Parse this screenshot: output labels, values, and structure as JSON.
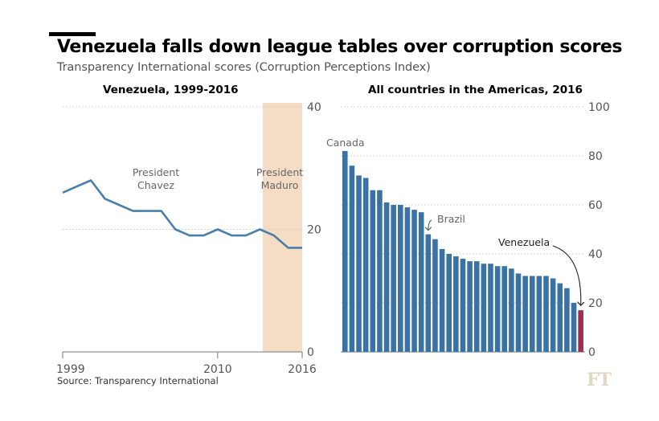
{
  "header": {
    "title": "Venezuela falls down league tables over corruption scores",
    "subtitle": "Transparency International scores (Corruption Perceptions Index)",
    "source": "Source: Transparency International",
    "logo": "FT"
  },
  "colors": {
    "line": "#4a7fa8",
    "bar": "#3b72a4",
    "highlight_bar": "#9e2f50",
    "maduro_band": "#f4ddc4",
    "grid": "#cfcac4"
  },
  "chart_data": [
    {
      "type": "line",
      "title": "Venezuela, 1999-2016",
      "x": [
        1999,
        2000,
        2001,
        2002,
        2003,
        2004,
        2005,
        2006,
        2007,
        2008,
        2009,
        2010,
        2011,
        2012,
        2013,
        2014,
        2015,
        2016
      ],
      "values": [
        26,
        27,
        28,
        25,
        24,
        23,
        23,
        23,
        20,
        19,
        19,
        20,
        19,
        19,
        20,
        19,
        17,
        17
      ],
      "xlim": [
        1999,
        2016
      ],
      "ylim": [
        0,
        40
      ],
      "x_ticks": [
        "1999",
        "2010",
        "2016"
      ],
      "y_ticks": [
        "0",
        "20",
        "40"
      ],
      "shaded_period": {
        "label": "Maduro presidency",
        "start": 2013.2,
        "end": 2016
      },
      "annotations": {
        "chavez": [
          "President",
          "Chavez"
        ],
        "maduro": [
          "President",
          "Maduro"
        ]
      }
    },
    {
      "type": "bar",
      "title": "All countries in the Americas, 2016",
      "values": [
        82,
        76,
        72,
        71,
        66,
        66,
        61,
        60,
        60,
        59,
        58,
        57,
        48,
        46,
        42,
        40,
        39,
        38,
        37,
        37,
        36,
        36,
        35,
        35,
        34,
        32,
        31,
        31,
        31,
        31,
        30,
        28,
        26,
        20,
        17
      ],
      "highlight_index": 34,
      "ylim": [
        0,
        100
      ],
      "y_ticks": [
        "0",
        "20",
        "40",
        "60",
        "80",
        "100"
      ],
      "annotations": {
        "canada": "Canada",
        "brazil": "Brazil",
        "venezuela": "Venezuela"
      }
    }
  ]
}
